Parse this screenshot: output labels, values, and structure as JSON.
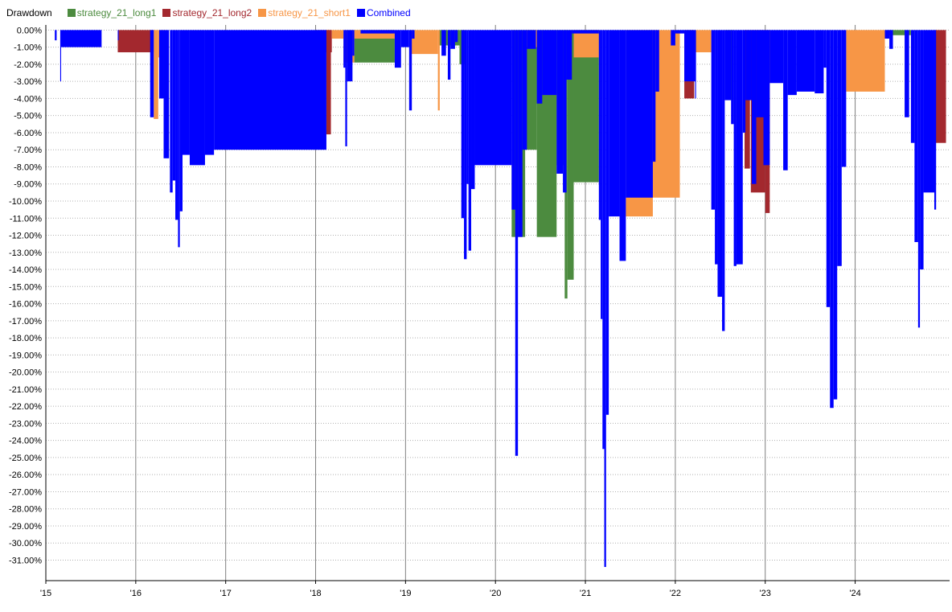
{
  "chart_data": {
    "type": "area",
    "title": "Drawdown",
    "x_tick_labels": [
      "'15",
      "'16",
      "'17",
      "'18",
      "'19",
      "'20",
      "'21",
      "'22",
      "'23",
      "'24"
    ],
    "xlim": [
      2015.0,
      2025.05
    ],
    "ylim": [
      -32.2,
      0.3
    ],
    "y_ticks": [
      0,
      -1,
      -2,
      -3,
      -4,
      -5,
      -6,
      -7,
      -8,
      -9,
      -10,
      -11,
      -12,
      -13,
      -14,
      -15,
      -16,
      -17,
      -18,
      -19,
      -20,
      -21,
      -22,
      -23,
      -24,
      -25,
      -26,
      -27,
      -28,
      -29,
      -30,
      -31
    ],
    "y_tick_format": "percent_2dp",
    "grid": true,
    "legend_position": "top-left",
    "series": [
      {
        "name": "strategy_21_long1",
        "color": "#4c8b3f",
        "segments": [
          {
            "x0": 2018.43,
            "x1": 2018.88,
            "y": -1.9
          },
          {
            "x0": 2019.37,
            "x1": 2019.6,
            "y": -0.9
          },
          {
            "x0": 2019.6,
            "x1": 2019.66,
            "y": -2.0
          },
          {
            "x0": 2020.18,
            "x1": 2020.33,
            "y": -12.1
          },
          {
            "x0": 2020.33,
            "x1": 2020.46,
            "y": -7.0
          },
          {
            "x0": 2020.46,
            "x1": 2020.68,
            "y": -12.1
          },
          {
            "x0": 2020.68,
            "x1": 2020.79,
            "y": -7.9
          },
          {
            "x0": 2020.77,
            "x1": 2020.8,
            "y": -15.7
          },
          {
            "x0": 2020.8,
            "x1": 2020.87,
            "y": -14.6
          },
          {
            "x0": 2020.87,
            "x1": 2021.15,
            "y": -8.9
          },
          {
            "x0": 2022.55,
            "x1": 2022.65,
            "y": -4.1
          },
          {
            "x0": 2024.33,
            "x1": 2024.62,
            "y": -0.3
          }
        ]
      },
      {
        "name": "strategy_21_long2",
        "color": "#a3282e",
        "segments": [
          {
            "x0": 2015.8,
            "x1": 2016.2,
            "y": -1.3
          },
          {
            "x0": 2018.0,
            "x1": 2018.18,
            "y": -1.3
          },
          {
            "x0": 2018.12,
            "x1": 2018.17,
            "y": -6.1
          },
          {
            "x0": 2022.1,
            "x1": 2022.21,
            "y": -4.0
          },
          {
            "x0": 2022.77,
            "x1": 2022.83,
            "y": -8.1
          },
          {
            "x0": 2022.84,
            "x1": 2023.0,
            "y": -9.5
          },
          {
            "x0": 2023.0,
            "x1": 2023.05,
            "y": -10.7
          },
          {
            "x0": 2024.88,
            "x1": 2025.01,
            "y": -6.6
          }
        ]
      },
      {
        "name": "strategy_21_short1",
        "color": "#f79646",
        "segments": [
          {
            "x0": 2016.2,
            "x1": 2016.25,
            "y": -5.2
          },
          {
            "x0": 2016.25,
            "x1": 2016.33,
            "y": -1.6
          },
          {
            "x0": 2018.18,
            "x1": 2018.31,
            "y": -0.5
          },
          {
            "x0": 2018.31,
            "x1": 2018.43,
            "y": -1.9
          },
          {
            "x0": 2018.43,
            "x1": 2018.88,
            "y": -0.5
          },
          {
            "x0": 2019.05,
            "x1": 2019.36,
            "y": -1.4
          },
          {
            "x0": 2019.36,
            "x1": 2019.38,
            "y": -4.7
          },
          {
            "x0": 2020.34,
            "x1": 2020.46,
            "y": -1.0
          },
          {
            "x0": 2020.87,
            "x1": 2021.15,
            "y": -1.6
          },
          {
            "x0": 2021.45,
            "x1": 2021.75,
            "y": -10.9
          },
          {
            "x0": 2021.75,
            "x1": 2022.05,
            "y": -9.8
          },
          {
            "x0": 2022.22,
            "x1": 2022.4,
            "y": -1.3
          },
          {
            "x0": 2023.9,
            "x1": 2024.33,
            "y": -3.6
          }
        ]
      },
      {
        "name": "Combined",
        "color": "#0000ff",
        "segments": [
          {
            "x0": 2015.1,
            "x1": 2015.12,
            "y": -0.6
          },
          {
            "x0": 2015.16,
            "x1": 2015.17,
            "y": -3.0
          },
          {
            "x0": 2015.17,
            "x1": 2015.62,
            "y": -1.0
          },
          {
            "x0": 2015.8,
            "x1": 2015.81,
            "y": -0.6
          },
          {
            "x0": 2016.16,
            "x1": 2016.2,
            "y": -5.1
          },
          {
            "x0": 2016.26,
            "x1": 2016.31,
            "y": -4.0
          },
          {
            "x0": 2016.31,
            "x1": 2016.37,
            "y": -7.5
          },
          {
            "x0": 2016.38,
            "x1": 2016.41,
            "y": -9.5
          },
          {
            "x0": 2016.41,
            "x1": 2016.44,
            "y": -8.8
          },
          {
            "x0": 2016.44,
            "x1": 2016.47,
            "y": -11.1
          },
          {
            "x0": 2016.47,
            "x1": 2016.49,
            "y": -12.7
          },
          {
            "x0": 2016.49,
            "x1": 2016.52,
            "y": -10.6
          },
          {
            "x0": 2016.52,
            "x1": 2016.6,
            "y": -7.3
          },
          {
            "x0": 2016.6,
            "x1": 2016.77,
            "y": -7.9
          },
          {
            "x0": 2016.77,
            "x1": 2016.87,
            "y": -7.3
          },
          {
            "x0": 2016.87,
            "x1": 2018.12,
            "y": -7.0
          },
          {
            "x0": 2018.31,
            "x1": 2018.33,
            "y": -2.2
          },
          {
            "x0": 2018.33,
            "x1": 2018.35,
            "y": -6.8
          },
          {
            "x0": 2018.35,
            "x1": 2018.41,
            "y": -3.0
          },
          {
            "x0": 2018.41,
            "x1": 2018.43,
            "y": -1.5
          },
          {
            "x0": 2018.5,
            "x1": 2018.88,
            "y": -0.2
          },
          {
            "x0": 2018.88,
            "x1": 2018.95,
            "y": -2.2
          },
          {
            "x0": 2018.95,
            "x1": 2019.04,
            "y": -1.0
          },
          {
            "x0": 2019.04,
            "x1": 2019.07,
            "y": -4.7
          },
          {
            "x0": 2019.07,
            "x1": 2019.1,
            "y": -0.5
          },
          {
            "x0": 2019.4,
            "x1": 2019.45,
            "y": -1.5
          },
          {
            "x0": 2019.47,
            "x1": 2019.5,
            "y": -2.9
          },
          {
            "x0": 2019.5,
            "x1": 2019.55,
            "y": -1.1
          },
          {
            "x0": 2019.55,
            "x1": 2019.58,
            "y": -0.7
          },
          {
            "x0": 2019.62,
            "x1": 2019.65,
            "y": -11.0
          },
          {
            "x0": 2019.65,
            "x1": 2019.68,
            "y": -13.4
          },
          {
            "x0": 2019.68,
            "x1": 2019.7,
            "y": -9.0
          },
          {
            "x0": 2019.7,
            "x1": 2019.73,
            "y": -12.9
          },
          {
            "x0": 2019.73,
            "x1": 2019.77,
            "y": -9.3
          },
          {
            "x0": 2019.77,
            "x1": 2020.18,
            "y": -7.9
          },
          {
            "x0": 2020.18,
            "x1": 2020.22,
            "y": -10.5
          },
          {
            "x0": 2020.22,
            "x1": 2020.25,
            "y": -24.9
          },
          {
            "x0": 2020.25,
            "x1": 2020.3,
            "y": -12.1
          },
          {
            "x0": 2020.3,
            "x1": 2020.35,
            "y": -7.0
          },
          {
            "x0": 2020.35,
            "x1": 2020.45,
            "y": -1.1
          },
          {
            "x0": 2020.46,
            "x1": 2020.52,
            "y": -4.3
          },
          {
            "x0": 2020.52,
            "x1": 2020.68,
            "y": -3.8
          },
          {
            "x0": 2020.68,
            "x1": 2020.75,
            "y": -8.4
          },
          {
            "x0": 2020.75,
            "x1": 2020.79,
            "y": -9.5
          },
          {
            "x0": 2020.79,
            "x1": 2020.85,
            "y": -2.9
          },
          {
            "x0": 2020.85,
            "x1": 2020.87,
            "y": -0.2
          },
          {
            "x0": 2020.87,
            "x1": 2021.15,
            "y": -0.2
          },
          {
            "x0": 2021.15,
            "x1": 2021.17,
            "y": -11.1
          },
          {
            "x0": 2021.17,
            "x1": 2021.19,
            "y": -16.9
          },
          {
            "x0": 2021.19,
            "x1": 2021.21,
            "y": -24.5
          },
          {
            "x0": 2021.21,
            "x1": 2021.23,
            "y": -31.4
          },
          {
            "x0": 2021.23,
            "x1": 2021.26,
            "y": -22.5
          },
          {
            "x0": 2021.26,
            "x1": 2021.38,
            "y": -10.9
          },
          {
            "x0": 2021.38,
            "x1": 2021.45,
            "y": -13.5
          },
          {
            "x0": 2021.45,
            "x1": 2021.75,
            "y": -9.8
          },
          {
            "x0": 2021.75,
            "x1": 2021.78,
            "y": -7.7
          },
          {
            "x0": 2021.78,
            "x1": 2021.82,
            "y": -3.6
          },
          {
            "x0": 2021.95,
            "x1": 2022.0,
            "y": -0.9
          },
          {
            "x0": 2022.0,
            "x1": 2022.1,
            "y": -0.2
          },
          {
            "x0": 2022.1,
            "x1": 2022.22,
            "y": -3.0
          },
          {
            "x0": 2022.22,
            "x1": 2022.23,
            "y": -4.0
          },
          {
            "x0": 2022.4,
            "x1": 2022.44,
            "y": -10.5
          },
          {
            "x0": 2022.44,
            "x1": 2022.47,
            "y": -13.7
          },
          {
            "x0": 2022.47,
            "x1": 2022.52,
            "y": -15.6
          },
          {
            "x0": 2022.52,
            "x1": 2022.55,
            "y": -17.6
          },
          {
            "x0": 2022.55,
            "x1": 2022.62,
            "y": -4.1
          },
          {
            "x0": 2022.62,
            "x1": 2022.65,
            "y": -5.5
          },
          {
            "x0": 2022.65,
            "x1": 2022.68,
            "y": -13.8
          },
          {
            "x0": 2022.68,
            "x1": 2022.75,
            "y": -13.7
          },
          {
            "x0": 2022.75,
            "x1": 2022.78,
            "y": -6.0
          },
          {
            "x0": 2022.78,
            "x1": 2022.85,
            "y": -4.1
          },
          {
            "x0": 2022.85,
            "x1": 2022.9,
            "y": -9.0
          },
          {
            "x0": 2022.9,
            "x1": 2022.98,
            "y": -5.1
          },
          {
            "x0": 2022.98,
            "x1": 2023.05,
            "y": -7.9
          },
          {
            "x0": 2023.05,
            "x1": 2023.2,
            "y": -3.1
          },
          {
            "x0": 2023.2,
            "x1": 2023.25,
            "y": -8.2
          },
          {
            "x0": 2023.25,
            "x1": 2023.35,
            "y": -3.8
          },
          {
            "x0": 2023.35,
            "x1": 2023.55,
            "y": -3.6
          },
          {
            "x0": 2023.55,
            "x1": 2023.65,
            "y": -3.7
          },
          {
            "x0": 2023.65,
            "x1": 2023.68,
            "y": -2.2
          },
          {
            "x0": 2023.68,
            "x1": 2023.72,
            "y": -16.2
          },
          {
            "x0": 2023.72,
            "x1": 2023.76,
            "y": -22.1
          },
          {
            "x0": 2023.76,
            "x1": 2023.8,
            "y": -21.6
          },
          {
            "x0": 2023.8,
            "x1": 2023.85,
            "y": -13.8
          },
          {
            "x0": 2023.85,
            "x1": 2023.9,
            "y": -8.0
          },
          {
            "x0": 2024.33,
            "x1": 2024.38,
            "y": -0.5
          },
          {
            "x0": 2024.38,
            "x1": 2024.42,
            "y": -1.1
          },
          {
            "x0": 2024.55,
            "x1": 2024.6,
            "y": -5.1
          },
          {
            "x0": 2024.62,
            "x1": 2024.66,
            "y": -6.6
          },
          {
            "x0": 2024.66,
            "x1": 2024.7,
            "y": -12.4
          },
          {
            "x0": 2024.7,
            "x1": 2024.72,
            "y": -17.4
          },
          {
            "x0": 2024.72,
            "x1": 2024.76,
            "y": -14.0
          },
          {
            "x0": 2024.76,
            "x1": 2024.88,
            "y": -9.5
          },
          {
            "x0": 2024.88,
            "x1": 2024.9,
            "y": -10.5
          }
        ]
      }
    ]
  }
}
